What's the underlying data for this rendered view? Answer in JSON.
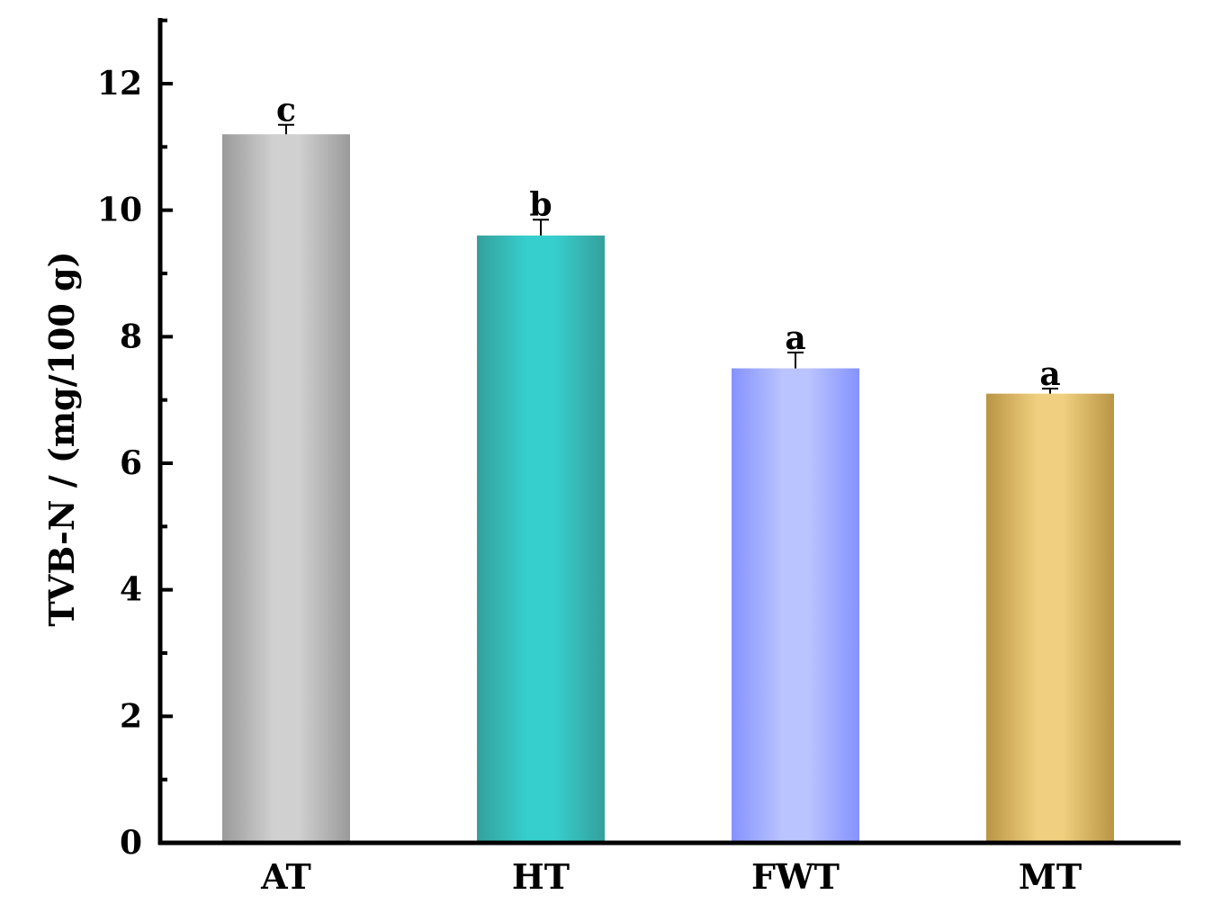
{
  "chart_data": {
    "type": "bar",
    "title": "",
    "xlabel": "",
    "ylabel": "TVB-N / (mg/100 g)",
    "categories": [
      "AT",
      "HT",
      "FWT",
      "MT"
    ],
    "values": [
      11.2,
      9.6,
      7.5,
      7.1
    ],
    "errors": [
      0.15,
      0.25,
      0.25,
      0.08
    ],
    "significance": [
      "c",
      "b",
      "a",
      "a"
    ],
    "ylim": [
      0,
      13
    ],
    "yticks": [
      0,
      2,
      4,
      6,
      8,
      10,
      12
    ],
    "ytick_labels": [
      "0",
      "2",
      "4",
      "6",
      "8",
      "10",
      "12"
    ],
    "minor_ticks": true,
    "grid": false,
    "legend": "none",
    "colors": {
      "AT": {
        "edge": "#9a9a9a",
        "center": "#d0d0d0"
      },
      "HT": {
        "edge": "#35a09c",
        "center": "#36cfce"
      },
      "FWT": {
        "edge": "#8592ff",
        "center": "#bac4ff"
      },
      "MT": {
        "edge": "#b99545",
        "center": "#f0d080"
      }
    }
  }
}
